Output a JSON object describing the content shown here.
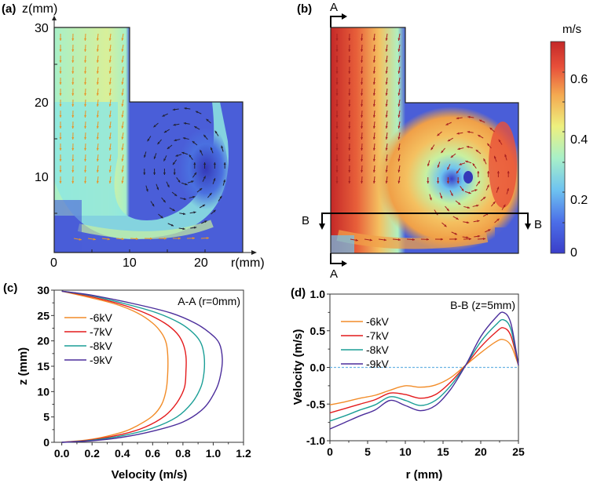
{
  "panels": {
    "a": {
      "label": "(a)",
      "z_axis_label": "z(mm)",
      "r_axis_label": "r(mm)",
      "z_ticks": [
        "30",
        "20",
        "10"
      ],
      "r_ticks": [
        "0",
        "10",
        "20"
      ]
    },
    "b": {
      "label": "(b)",
      "section_a": "A",
      "section_b": "B"
    },
    "colorbar": {
      "unit": "m/s",
      "ticks": [
        "0.6",
        "0.4",
        "0.2",
        "0"
      ],
      "range": [
        0,
        0.7
      ]
    },
    "c": {
      "label": "(c)"
    },
    "d": {
      "label": "(d)"
    }
  },
  "chart_data": [
    {
      "type": "heatmap",
      "title": "(a) velocity field",
      "xlabel": "r(mm)",
      "ylabel": "z(mm)",
      "xlim": [
        0,
        25
      ],
      "ylim": [
        0,
        30
      ],
      "colorbar": {
        "unit": "m/s",
        "range": [
          0,
          0.7
        ]
      },
      "note": "L-shaped domain: r 0–10 for z 20–30, r 0–25 for z 0–20; single vortex centered near r=17, z=11; max velocity ~0.45 m/s"
    },
    {
      "type": "heatmap",
      "title": "(b) velocity field",
      "xlim": [
        0,
        25
      ],
      "ylim": [
        0,
        30
      ],
      "colorbar": {
        "unit": "m/s",
        "range": [
          0,
          0.7
        ]
      },
      "sections": [
        "A-A (r=0mm)",
        "B-B (z=5mm)"
      ],
      "note": "Vortex centered near r=18, z=12; max velocity ~0.7 m/s along r=0"
    },
    {
      "type": "line",
      "title": "A-A (r=0mm)",
      "xlabel": "Velocity (m/s)",
      "ylabel": "z (mm)",
      "xlim": [
        -0.05,
        1.2
      ],
      "ylim": [
        0,
        30
      ],
      "xticks": [
        "0.0",
        "0.2",
        "0.4",
        "0.6",
        "0.8",
        "1.0",
        "1.2"
      ],
      "yticks": [
        "0",
        "5",
        "10",
        "15",
        "20",
        "25",
        "30"
      ],
      "legend": "top-left",
      "colors": {
        "-6kV": "#f28c28",
        "-7kV": "#e41a1c",
        "-8kV": "#1a9e96",
        "-9kV": "#4b2d9b"
      },
      "series": [
        {
          "name": "-6kV",
          "x": [
            0.0,
            0.2,
            0.4,
            0.5,
            0.6,
            0.66,
            0.69,
            0.7,
            0.7,
            0.69,
            0.66,
            0.6,
            0.5,
            0.35,
            0.15,
            0.0
          ],
          "y": [
            0.0,
            0.6,
            2.0,
            3.3,
            5.2,
            7.5,
            10.5,
            14,
            17,
            19.5,
            21.5,
            23.5,
            25.5,
            27.3,
            28.8,
            29.8
          ]
        },
        {
          "name": "-7kV",
          "x": [
            0.0,
            0.2,
            0.4,
            0.55,
            0.68,
            0.76,
            0.81,
            0.82,
            0.82,
            0.8,
            0.76,
            0.68,
            0.55,
            0.38,
            0.15,
            0.0
          ],
          "y": [
            0.0,
            0.5,
            1.6,
            3.0,
            5.2,
            7.8,
            10.8,
            14,
            17,
            19.5,
            21.5,
            23.5,
            25.5,
            27.3,
            29.0,
            29.8
          ]
        },
        {
          "name": "-8kV",
          "x": [
            0.0,
            0.2,
            0.4,
            0.6,
            0.76,
            0.86,
            0.92,
            0.94,
            0.94,
            0.92,
            0.87,
            0.78,
            0.63,
            0.42,
            0.18,
            0.0
          ],
          "y": [
            0.0,
            0.4,
            1.3,
            2.8,
            5.0,
            7.8,
            11.0,
            14,
            17,
            19.5,
            21.5,
            23.5,
            25.5,
            27.3,
            29.0,
            29.8
          ]
        },
        {
          "name": "-9kV",
          "x": [
            0.0,
            0.2,
            0.4,
            0.6,
            0.8,
            0.94,
            1.02,
            1.05,
            1.06,
            1.04,
            0.98,
            0.88,
            0.72,
            0.48,
            0.2,
            0.0
          ],
          "y": [
            0.0,
            0.3,
            1.0,
            2.2,
            4.0,
            6.8,
            10.5,
            13.5,
            16.5,
            19.5,
            21.5,
            23.5,
            25.5,
            27.3,
            29.0,
            29.8
          ]
        }
      ]
    },
    {
      "type": "line",
      "title": "B-B (z=5mm)",
      "xlabel": "r (mm)",
      "ylabel": "Velocity (m/s)",
      "xlim": [
        0,
        25
      ],
      "ylim": [
        -1.0,
        1.0
      ],
      "xticks": [
        "0",
        "5",
        "10",
        "15",
        "20",
        "25"
      ],
      "yticks": [
        "-1.0",
        "-0.5",
        "0.0",
        "0.5",
        "1.0"
      ],
      "reference_line": 0.0,
      "legend": "top-left",
      "colors": {
        "-6kV": "#f28c28",
        "-7kV": "#e41a1c",
        "-8kV": "#1a9e96",
        "-9kV": "#4b2d9b"
      },
      "series": [
        {
          "name": "-6kV",
          "x": [
            0,
            2,
            4,
            6,
            8,
            10,
            12,
            14,
            16,
            18,
            20,
            22,
            23,
            24,
            25
          ],
          "y": [
            -0.51,
            -0.47,
            -0.42,
            -0.38,
            -0.31,
            -0.25,
            -0.27,
            -0.24,
            -0.14,
            0.03,
            0.2,
            0.35,
            0.38,
            0.3,
            0.03
          ]
        },
        {
          "name": "-7kV",
          "x": [
            0,
            2,
            4,
            6,
            8,
            10,
            12,
            14,
            16,
            18,
            20,
            22,
            23,
            24,
            25
          ],
          "y": [
            -0.62,
            -0.56,
            -0.5,
            -0.44,
            -0.35,
            -0.37,
            -0.42,
            -0.37,
            -0.2,
            0.03,
            0.28,
            0.48,
            0.54,
            0.43,
            0.03
          ]
        },
        {
          "name": "-8kV",
          "x": [
            0,
            2,
            4,
            6,
            8,
            10,
            12,
            14,
            16,
            18,
            20,
            22,
            23,
            24,
            25
          ],
          "y": [
            -0.73,
            -0.66,
            -0.58,
            -0.51,
            -0.4,
            -0.45,
            -0.52,
            -0.45,
            -0.25,
            0.03,
            0.35,
            0.58,
            0.65,
            0.52,
            0.03
          ]
        },
        {
          "name": "-9kV",
          "x": [
            0,
            2,
            4,
            6,
            8,
            10,
            12,
            14,
            16,
            18,
            20,
            22,
            23,
            24,
            25
          ],
          "y": [
            -0.84,
            -0.75,
            -0.66,
            -0.58,
            -0.45,
            -0.52,
            -0.59,
            -0.52,
            -0.3,
            0.03,
            0.42,
            0.68,
            0.75,
            0.6,
            0.03
          ]
        }
      ]
    }
  ]
}
